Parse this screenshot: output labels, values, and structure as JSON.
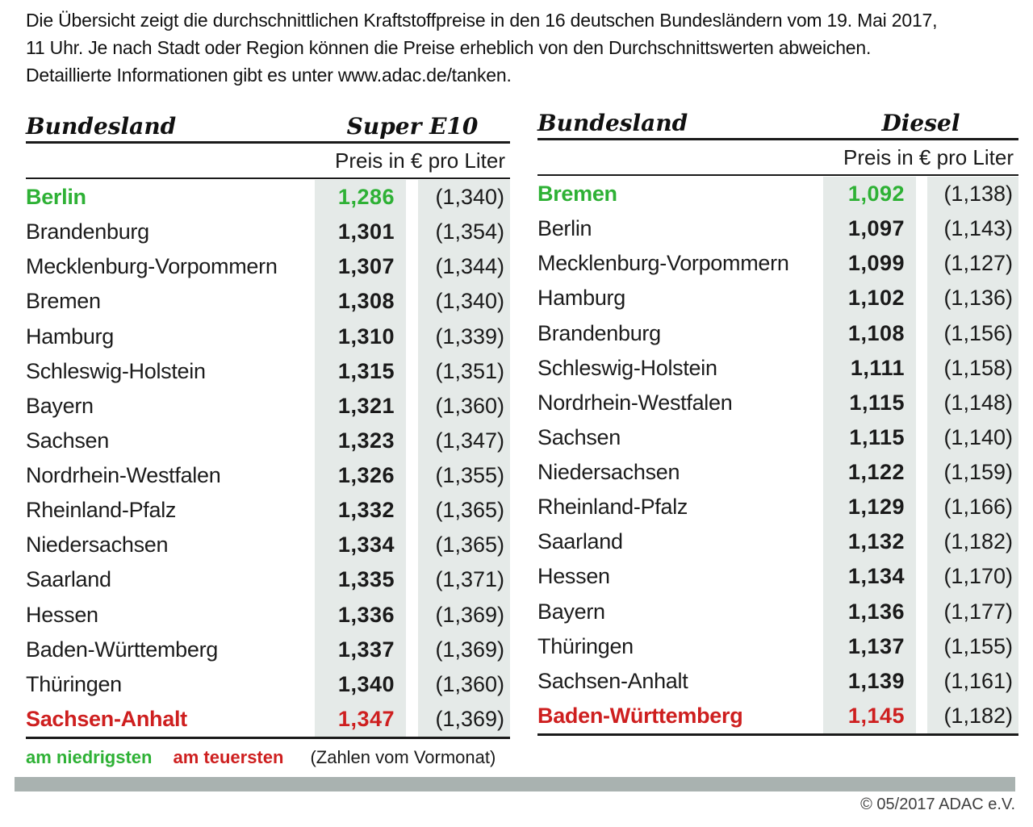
{
  "intro": {
    "lines": [
      "Die Übersicht zeigt die durchschnittlichen Kraftstoffpreise in den 16 deutschen Bundesländern vom 19. Mai 2017,",
      "11 Uhr. Je nach Stadt oder Region können die Preise erheblich von den Durchschnittswerten abweichen.",
      "Detaillierte Informationen gibt es unter www.adac.de/tanken."
    ]
  },
  "tables": [
    {
      "bundesland_header": "Bundesland",
      "fuel_header": "Super E10",
      "unit_header": "Preis in € pro Liter",
      "rows": [
        {
          "name": "Berlin",
          "price": "1,286",
          "prev": "(1,340)",
          "highlight": "lowest"
        },
        {
          "name": "Brandenburg",
          "price": "1,301",
          "prev": "(1,354)",
          "highlight": ""
        },
        {
          "name": "Mecklenburg-Vorpommern",
          "price": "1,307",
          "prev": "(1,344)",
          "highlight": ""
        },
        {
          "name": "Bremen",
          "price": "1,308",
          "prev": "(1,340)",
          "highlight": ""
        },
        {
          "name": "Hamburg",
          "price": "1,310",
          "prev": "(1,339)",
          "highlight": ""
        },
        {
          "name": "Schleswig-Holstein",
          "price": "1,315",
          "prev": "(1,351)",
          "highlight": ""
        },
        {
          "name": "Bayern",
          "price": "1,321",
          "prev": "(1,360)",
          "highlight": ""
        },
        {
          "name": "Sachsen",
          "price": "1,323",
          "prev": "(1,347)",
          "highlight": ""
        },
        {
          "name": "Nordrhein-Westfalen",
          "price": "1,326",
          "prev": "(1,355)",
          "highlight": ""
        },
        {
          "name": "Rheinland-Pfalz",
          "price": "1,332",
          "prev": "(1,365)",
          "highlight": ""
        },
        {
          "name": "Niedersachsen",
          "price": "1,334",
          "prev": "(1,365)",
          "highlight": ""
        },
        {
          "name": "Saarland",
          "price": "1,335",
          "prev": "(1,371)",
          "highlight": ""
        },
        {
          "name": "Hessen",
          "price": "1,336",
          "prev": "(1,369)",
          "highlight": ""
        },
        {
          "name": "Baden-Württemberg",
          "price": "1,337",
          "prev": "(1,369)",
          "highlight": ""
        },
        {
          "name": "Thüringen",
          "price": "1,340",
          "prev": "(1,360)",
          "highlight": ""
        },
        {
          "name": "Sachsen-Anhalt",
          "price": "1,347",
          "prev": "(1,369)",
          "highlight": "highest"
        }
      ]
    },
    {
      "bundesland_header": "Bundesland",
      "fuel_header": "Diesel",
      "unit_header": "Preis in € pro Liter",
      "rows": [
        {
          "name": "Bremen",
          "price": "1,092",
          "prev": "(1,138)",
          "highlight": "lowest"
        },
        {
          "name": "Berlin",
          "price": "1,097",
          "prev": "(1,143)",
          "highlight": ""
        },
        {
          "name": "Mecklenburg-Vorpommern",
          "price": "1,099",
          "prev": "(1,127)",
          "highlight": ""
        },
        {
          "name": "Hamburg",
          "price": "1,102",
          "prev": "(1,136)",
          "highlight": ""
        },
        {
          "name": "Brandenburg",
          "price": "1,108",
          "prev": "(1,156)",
          "highlight": ""
        },
        {
          "name": "Schleswig-Holstein",
          "price": "1,111",
          "prev": "(1,158)",
          "highlight": ""
        },
        {
          "name": "Nordrhein-Westfalen",
          "price": "1,115",
          "prev": "(1,148)",
          "highlight": ""
        },
        {
          "name": "Sachsen",
          "price": "1,115",
          "prev": "(1,140)",
          "highlight": ""
        },
        {
          "name": "Niedersachsen",
          "price": "1,122",
          "prev": "(1,159)",
          "highlight": ""
        },
        {
          "name": "Rheinland-Pfalz",
          "price": "1,129",
          "prev": "(1,166)",
          "highlight": ""
        },
        {
          "name": "Saarland",
          "price": "1,132",
          "prev": "(1,182)",
          "highlight": ""
        },
        {
          "name": "Hessen",
          "price": "1,134",
          "prev": "(1,170)",
          "highlight": ""
        },
        {
          "name": "Bayern",
          "price": "1,136",
          "prev": "(1,177)",
          "highlight": ""
        },
        {
          "name": "Thüringen",
          "price": "1,137",
          "prev": "(1,155)",
          "highlight": ""
        },
        {
          "name": "Sachsen-Anhalt",
          "price": "1,139",
          "prev": "(1,161)",
          "highlight": ""
        },
        {
          "name": "Baden-Württemberg",
          "price": "1,145",
          "prev": "(1,182)",
          "highlight": "highest"
        }
      ]
    }
  ],
  "legend": {
    "lowest": "am niedrigsten",
    "highest": "am teuersten",
    "note": "(Zahlen vom Vormonat)"
  },
  "footer": {
    "copyright": "© 05/2017 ADAC e.V."
  },
  "colors": {
    "green": "#2eb135",
    "red": "#ce1f1f",
    "cell_bg": "#e5eae8",
    "bar": "#a9b2b0"
  },
  "chart_data": [
    {
      "type": "table",
      "title": "Super E10",
      "unit": "Preis in € pro Liter",
      "columns": [
        "Bundesland",
        "Preis",
        "Vormonat"
      ],
      "rows": [
        [
          "Berlin",
          1.286,
          1.34
        ],
        [
          "Brandenburg",
          1.301,
          1.354
        ],
        [
          "Mecklenburg-Vorpommern",
          1.307,
          1.344
        ],
        [
          "Bremen",
          1.308,
          1.34
        ],
        [
          "Hamburg",
          1.31,
          1.339
        ],
        [
          "Schleswig-Holstein",
          1.315,
          1.351
        ],
        [
          "Bayern",
          1.321,
          1.36
        ],
        [
          "Sachsen",
          1.323,
          1.347
        ],
        [
          "Nordrhein-Westfalen",
          1.326,
          1.355
        ],
        [
          "Rheinland-Pfalz",
          1.332,
          1.365
        ],
        [
          "Niedersachsen",
          1.334,
          1.365
        ],
        [
          "Saarland",
          1.335,
          1.371
        ],
        [
          "Hessen",
          1.336,
          1.369
        ],
        [
          "Baden-Württemberg",
          1.337,
          1.369
        ],
        [
          "Thüringen",
          1.34,
          1.36
        ],
        [
          "Sachsen-Anhalt",
          1.347,
          1.369
        ]
      ],
      "annotations": [
        "am niedrigsten: Berlin",
        "am teuersten: Sachsen-Anhalt"
      ]
    },
    {
      "type": "table",
      "title": "Diesel",
      "unit": "Preis in € pro Liter",
      "columns": [
        "Bundesland",
        "Preis",
        "Vormonat"
      ],
      "rows": [
        [
          "Bremen",
          1.092,
          1.138
        ],
        [
          "Berlin",
          1.097,
          1.143
        ],
        [
          "Mecklenburg-Vorpommern",
          1.099,
          1.127
        ],
        [
          "Hamburg",
          1.102,
          1.136
        ],
        [
          "Brandenburg",
          1.108,
          1.156
        ],
        [
          "Schleswig-Holstein",
          1.111,
          1.158
        ],
        [
          "Nordrhein-Westfalen",
          1.115,
          1.148
        ],
        [
          "Sachsen",
          1.115,
          1.14
        ],
        [
          "Niedersachsen",
          1.122,
          1.159
        ],
        [
          "Rheinland-Pfalz",
          1.129,
          1.166
        ],
        [
          "Saarland",
          1.132,
          1.182
        ],
        [
          "Hessen",
          1.134,
          1.17
        ],
        [
          "Bayern",
          1.136,
          1.177
        ],
        [
          "Thüringen",
          1.137,
          1.155
        ],
        [
          "Sachsen-Anhalt",
          1.139,
          1.161
        ],
        [
          "Baden-Württemberg",
          1.145,
          1.182
        ]
      ],
      "annotations": [
        "am niedrigsten: Bremen",
        "am teuersten: Baden-Württemberg"
      ]
    }
  ]
}
